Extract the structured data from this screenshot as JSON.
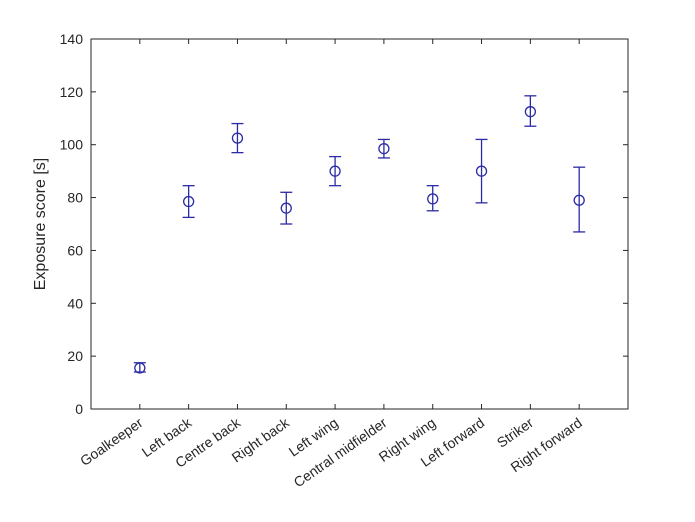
{
  "chart_data": {
    "type": "scatter",
    "title": "",
    "xlabel": "",
    "ylabel": "Exposure score [s]",
    "ylim": [
      0,
      140
    ],
    "yticks": [
      0,
      20,
      40,
      60,
      80,
      100,
      120,
      140
    ],
    "grid": false,
    "legend": "none",
    "marker": "open-circle-with-error-bars",
    "colors": {
      "series": "#2b2ba6",
      "axis": "#262626"
    },
    "categories": [
      "Goalkeeper",
      "Left back",
      "Centre back",
      "Right back",
      "Left wing",
      "Central midfielder",
      "Right wing",
      "Left forward",
      "Striker",
      "Right forward"
    ],
    "series": [
      {
        "values": [
          15.5,
          78.5,
          102.5,
          76,
          90,
          98.5,
          79.5,
          90,
          112.5,
          79
        ],
        "error_low": [
          14,
          72.5,
          97,
          70,
          84.5,
          95,
          75,
          78,
          107,
          67
        ],
        "error_high": [
          17.5,
          84.5,
          108,
          82,
          95.5,
          102,
          84.5,
          102,
          118.5,
          91.5
        ]
      }
    ]
  }
}
